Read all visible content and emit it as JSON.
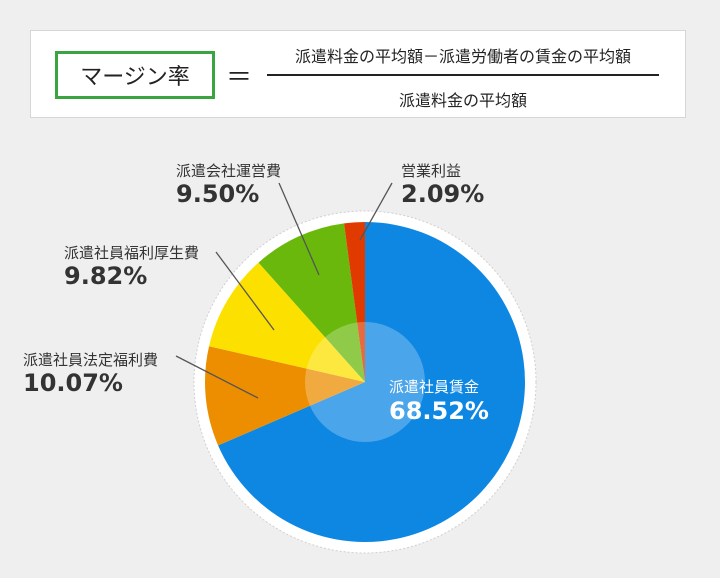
{
  "formula": {
    "term": "マージン率",
    "equals": "＝",
    "numerator": "派遣料金の平均額－派遣労働者の賃金の平均額",
    "denominator": "派遣料金の平均額"
  },
  "colors": {
    "wages": "#0e87e3",
    "legal_welfare": "#ec8e00",
    "welfare": "#fce100",
    "operating": "#6ab80c",
    "profit": "#e03a00",
    "formula_box_border": "#3aa441"
  },
  "chart_data": {
    "type": "pie",
    "slices": [
      {
        "key": "wages",
        "label": "派遣社員賃金",
        "value": 68.52,
        "display": "68.52%",
        "color": "#0e87e3"
      },
      {
        "key": "legal_welfare",
        "label": "派遣社員法定福利費",
        "value": 10.07,
        "display": "10.07%",
        "color": "#ec8e00"
      },
      {
        "key": "welfare",
        "label": "派遣社員福利厚生費",
        "value": 9.82,
        "display": "9.82%",
        "color": "#fce100"
      },
      {
        "key": "operating",
        "label": "派遣会社運営費",
        "value": 9.5,
        "display": "9.50%",
        "color": "#6ab80c"
      },
      {
        "key": "profit",
        "label": "営業利益",
        "value": 2.09,
        "display": "2.09%",
        "color": "#e03a00"
      }
    ]
  }
}
